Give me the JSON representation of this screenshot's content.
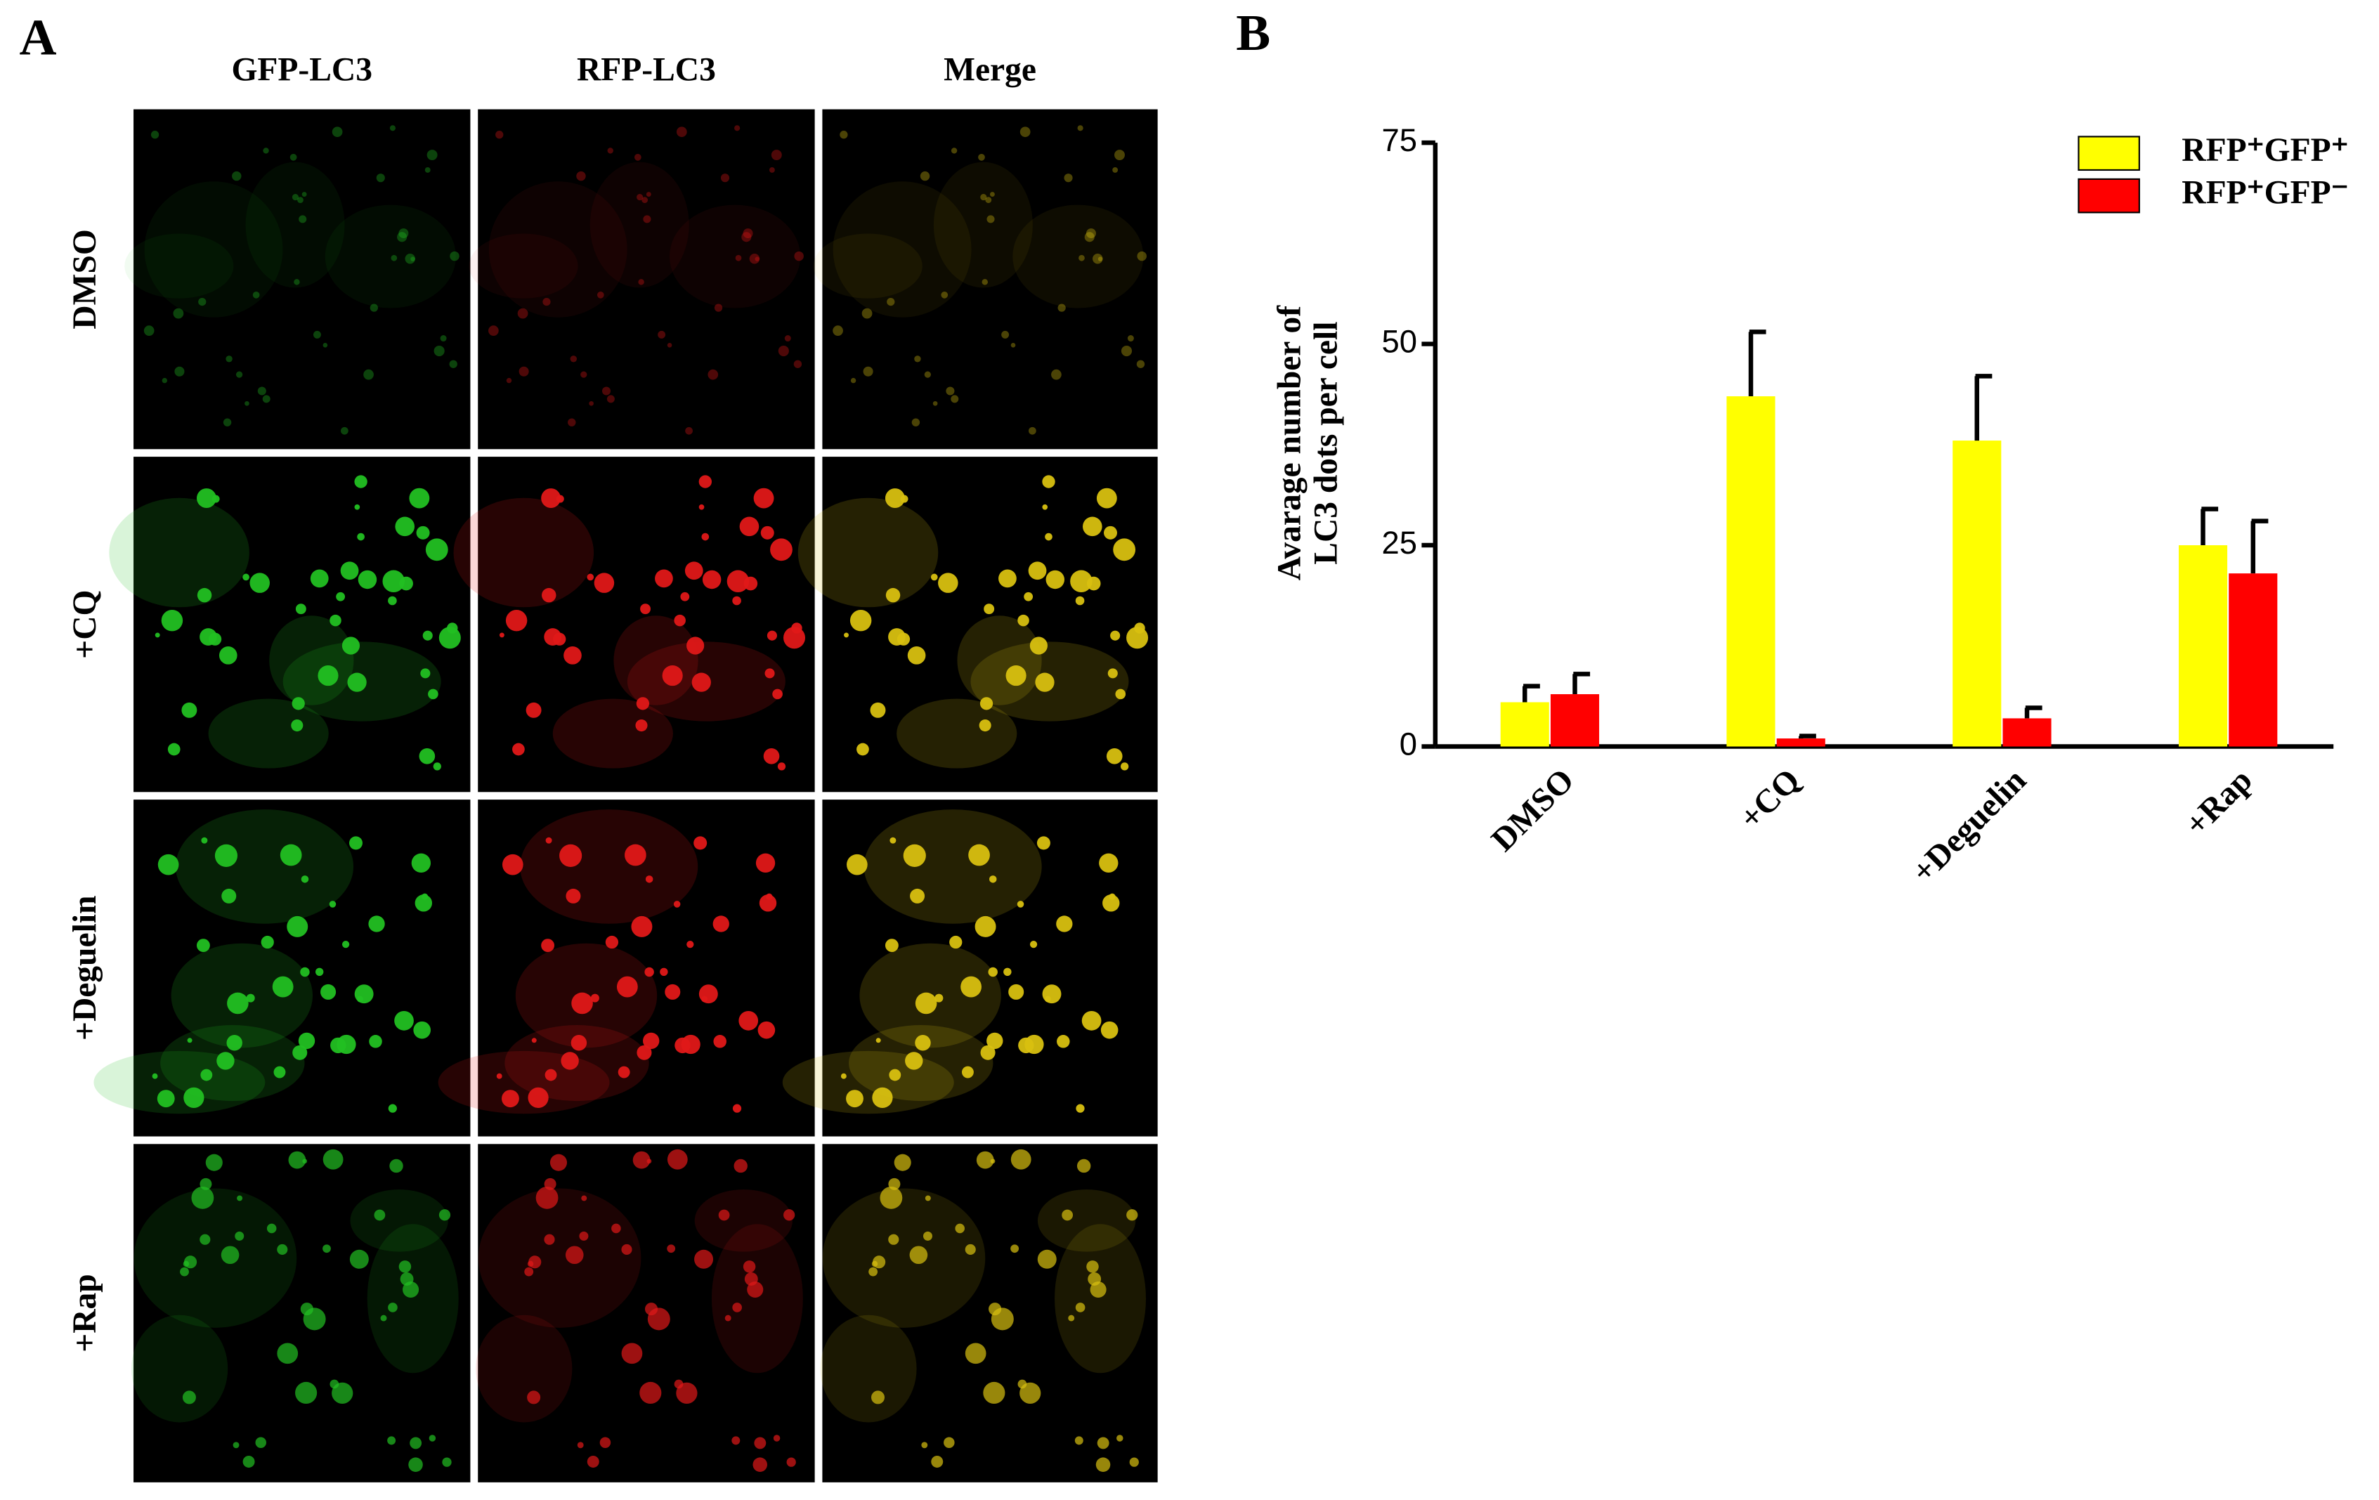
{
  "panel_a": {
    "label": "A",
    "columns": [
      "GFP-LC3",
      "RFP-LC3",
      "Merge"
    ],
    "rows": [
      "DMSO",
      "+CQ",
      "+Deguelin",
      "+Rap"
    ]
  },
  "panel_b_label": "B",
  "chart_data": {
    "type": "bar",
    "y_label": [
      "Avarage number of",
      "LC3 dots per cell"
    ],
    "categories": [
      "DMSO",
      "+CQ",
      "+Deguelin",
      "+Rap"
    ],
    "series": [
      {
        "name": "RFP⁺GFP⁺",
        "color": "#ffff00",
        "values": [
          5.5,
          43.5,
          38,
          25
        ],
        "errors": [
          2,
          8,
          8,
          4.5
        ]
      },
      {
        "name": "RFP⁺GFP⁻",
        "color": "#ff0000",
        "values": [
          6.5,
          1,
          3.5,
          21.5
        ],
        "errors": [
          2.5,
          0.3,
          1.3,
          6.5
        ]
      }
    ],
    "ylim": [
      0,
      75
    ],
    "yticks": [
      0,
      25,
      50,
      75
    ],
    "legend": "upper right"
  }
}
